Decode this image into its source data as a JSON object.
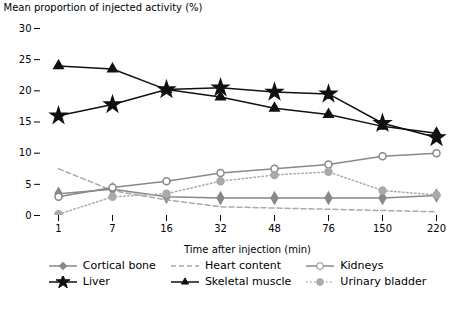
{
  "chart_data": {
    "type": "line",
    "xlabel": "Time after injection (min)",
    "ylabel": "Mean proportion of injected activity (%)",
    "categories": [
      "1",
      "7",
      "16",
      "32",
      "48",
      "76",
      "150",
      "220"
    ],
    "series": [
      {
        "name": "Cortical bone",
        "color": "#888888",
        "marker": "diamond",
        "line_style": "solid",
        "values": [
          3.5,
          4.2,
          3.0,
          2.8,
          2.8,
          2.8,
          2.8,
          3.2
        ]
      },
      {
        "name": "Heart content",
        "color": "#aaaaaa",
        "line_style": "dashed",
        "values": [
          7.5,
          4.0,
          2.5,
          1.4,
          1.2,
          1.0,
          0.8,
          0.6
        ]
      },
      {
        "name": "Kidneys",
        "color": "#888888",
        "marker": "circle_open",
        "line_style": "solid",
        "values": [
          3.0,
          4.5,
          5.5,
          6.8,
          7.5,
          8.2,
          9.5,
          10.0
        ]
      },
      {
        "name": "Liver",
        "color": "#111111",
        "marker": "star",
        "line_style": "solid",
        "values": [
          16.0,
          17.8,
          20.2,
          20.5,
          19.8,
          19.5,
          14.8,
          12.5
        ]
      },
      {
        "name": "Skeletal muscle",
        "color": "#111111",
        "marker": "triangle",
        "line_style": "solid",
        "values": [
          24.0,
          23.5,
          20.2,
          19.0,
          17.2,
          16.2,
          14.3,
          13.2
        ]
      },
      {
        "name": "Urinary bladder",
        "color": "#aaaaaa",
        "marker": "circle",
        "line_style": "dotted",
        "values": [
          0.2,
          3.0,
          3.5,
          5.5,
          6.5,
          7.0,
          4.0,
          3.3
        ]
      }
    ],
    "ylim": [
      0,
      30
    ],
    "yticks": [
      0,
      5,
      10,
      15,
      20,
      25,
      30
    ],
    "grid": false,
    "legend": "bottom"
  }
}
